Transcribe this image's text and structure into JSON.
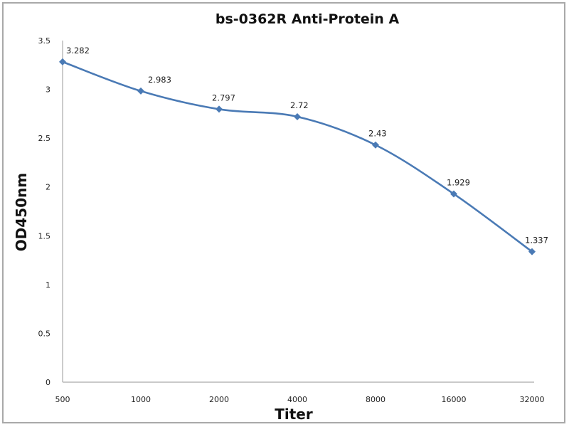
{
  "chart_data": {
    "type": "line",
    "title": "bs-0362R Anti-Protein A",
    "xlabel": "Titer",
    "ylabel": "OD450nm",
    "categories": [
      "500",
      "1000",
      "2000",
      "4000",
      "8000",
      "16000",
      "32000"
    ],
    "values": [
      3.282,
      2.983,
      2.797,
      2.72,
      2.43,
      1.929,
      1.337
    ],
    "data_labels": [
      "3.282",
      "2.983",
      "2.797",
      "2.72",
      "2.43",
      "1.929",
      "1.337"
    ],
    "yticks": [
      "0",
      "0.5",
      "1",
      "1.5",
      "2",
      "2.5",
      "3",
      "3.5"
    ],
    "ylim": [
      0,
      3.5
    ],
    "grid": false,
    "legend": "none",
    "smoothed": true,
    "marker": "diamond",
    "series_color": "#4a7ab5"
  }
}
